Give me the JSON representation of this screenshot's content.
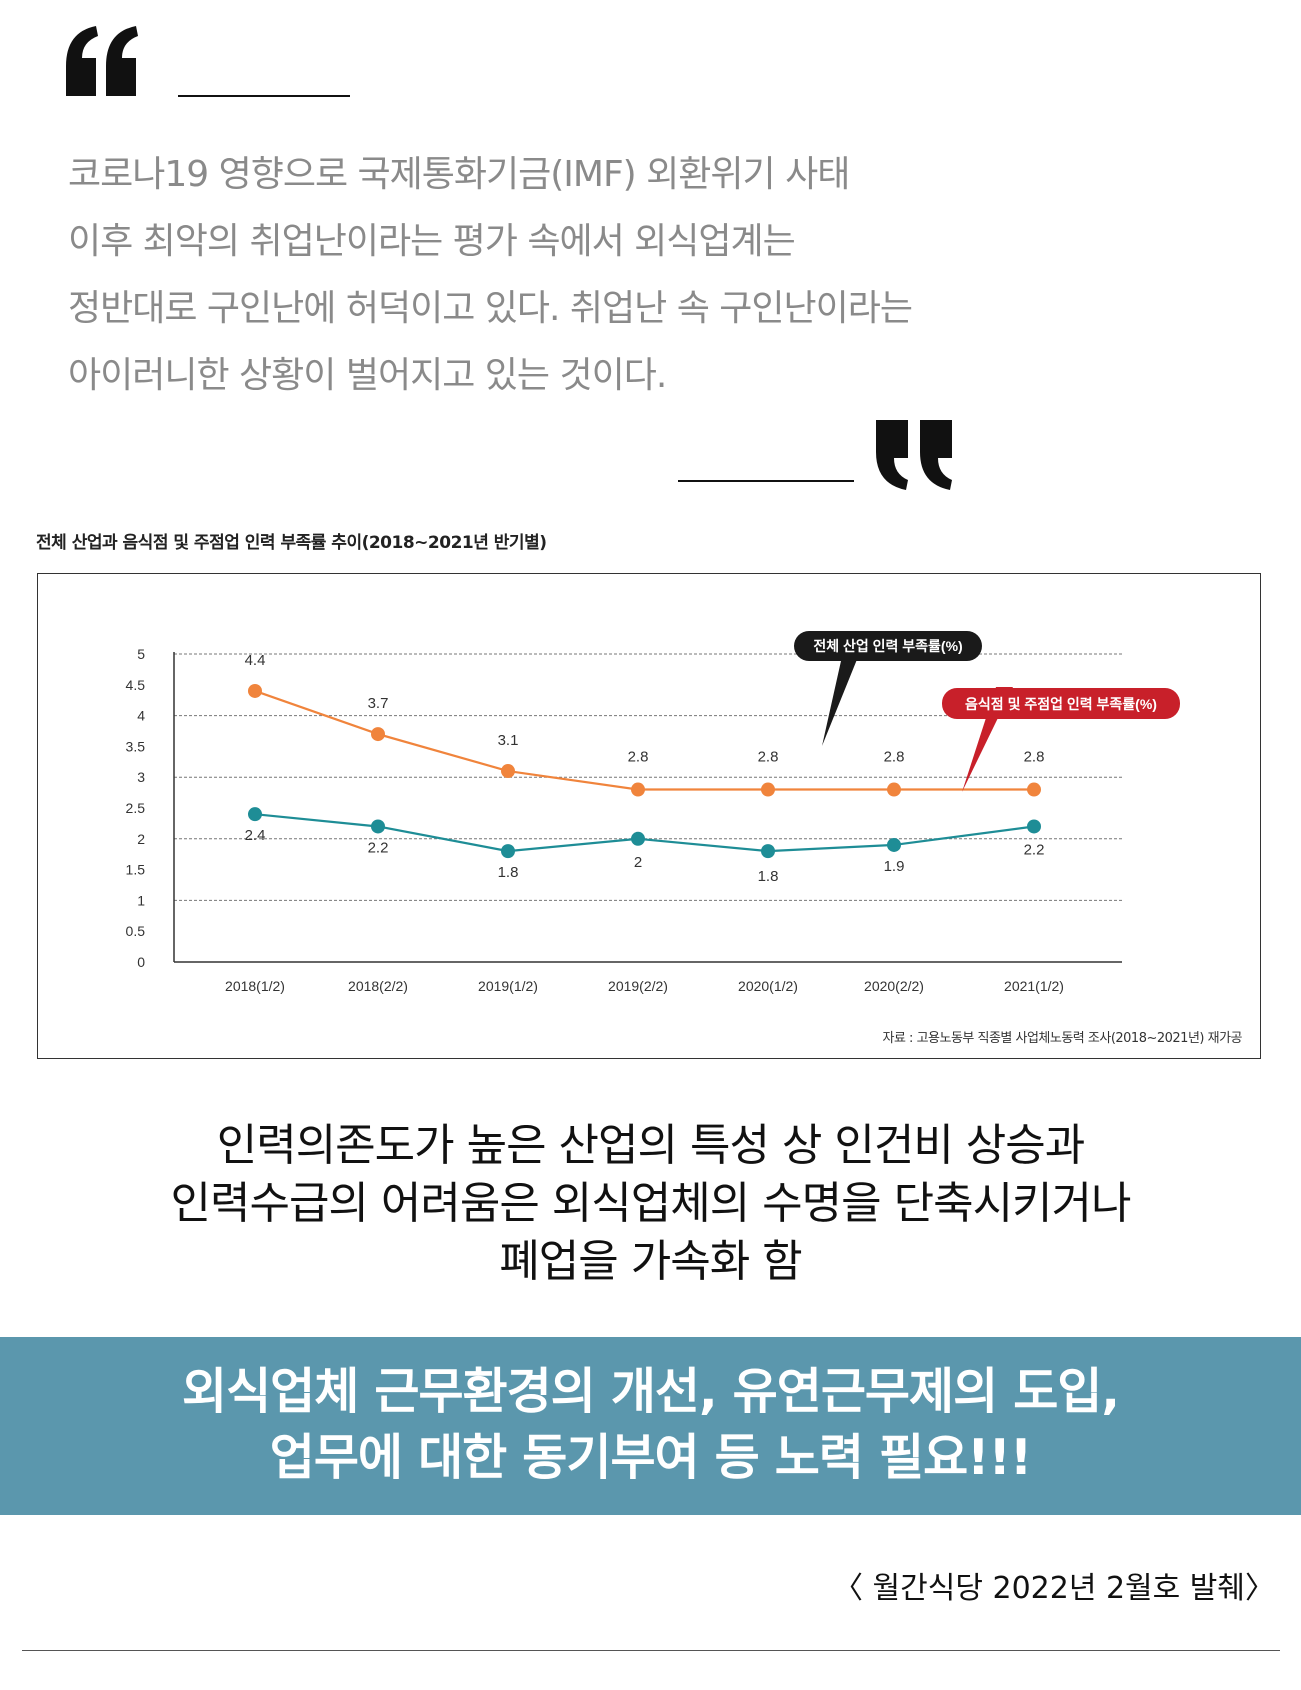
{
  "quote": {
    "lines": [
      "코로나19 영향으로 국제통화기금(IMF) 외환위기 사태",
      "이후 최악의 취업난이라는 평가 속에서 외식업계는",
      "정반대로 구인난에 허덕이고 있다. 취업난 속 구인난이라는",
      "아이러니한 상황이 벌어지고 있는 것이다."
    ]
  },
  "chart_title": "전체 산업과 음식점 및 주점업 인력 부족률 추이(2018~2021년 반기별)",
  "chart_data": {
    "type": "line",
    "categories": [
      "2018(1/2)",
      "2018(2/2)",
      "2019(1/2)",
      "2019(2/2)",
      "2020(1/2)",
      "2020(2/2)",
      "2021(1/2)"
    ],
    "series": [
      {
        "name": "음식점 및 주점업 인력 부족률(%)",
        "values": [
          4.4,
          3.7,
          3.1,
          2.8,
          2.8,
          2.8,
          2.8
        ],
        "labels": [
          "4.4",
          "3.7",
          "3.1",
          "2.8",
          "2.8",
          "2.8",
          "2.8"
        ],
        "color": "#f0843c",
        "callout_color": "#c8202a"
      },
      {
        "name": "전체 산업 인력 부족률(%)",
        "values": [
          2.4,
          2.2,
          1.8,
          2.0,
          1.8,
          1.9,
          2.2
        ],
        "labels": [
          "2.4",
          "2.2",
          "1.8",
          "2",
          "1.8",
          "1.9",
          "2.2"
        ],
        "color": "#1e8d96",
        "callout_color": "#1a1a1a"
      }
    ],
    "yticks": [
      "0",
      "0.5",
      "1",
      "1.5",
      "2",
      "2.5",
      "3",
      "3.5",
      "4",
      "4.5",
      "5"
    ],
    "ylim": [
      0,
      5
    ],
    "grid": "dashed at integer values",
    "source": "자료 : 고용노동부 직종별 사업체노동력 조사(2018~2021년) 재가공"
  },
  "summary": {
    "line1": "인력의존도가 높은 산업의 특성 상 인건비 상승과",
    "line2": "인력수급의 어려움은 외식업체의 수명을 단축시키거나",
    "line3": "폐업을 가속화 함"
  },
  "banner": {
    "line1": "외식업체 근무환경의 개선, 유연근무제의 도입,",
    "line2": "업무에 대한 동기부여 등 노력 필요!!!",
    "color": "#5b97ad"
  },
  "source_note": "〈 월간식당 2022년 2월호 발췌〉"
}
